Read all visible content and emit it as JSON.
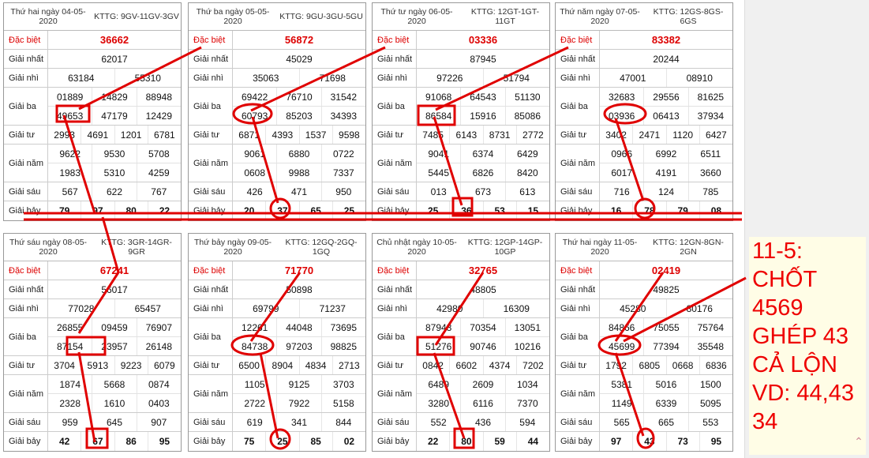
{
  "row_labels": {
    "special": "Đặc biệt",
    "first": "Giải nhất",
    "second": "Giải nhì",
    "third": "Giải ba",
    "fourth": "Giải tư",
    "fifth": "Giải năm",
    "sixth": "Giải sáu",
    "seventh": "Giải bảy"
  },
  "tables": [
    {
      "date": "Thứ hai ngày 04-05-2020",
      "code": "KTTG: 9GV-11GV-3GV",
      "special": "36662",
      "first": "62017",
      "second": [
        "63184",
        "55310"
      ],
      "third": [
        "01889",
        "14829",
        "88948",
        "49653",
        "47179",
        "12429"
      ],
      "fourth": [
        "2993",
        "4691",
        "1201",
        "6781"
      ],
      "fifth": [
        "9622",
        "9530",
        "5708",
        "1983",
        "5310",
        "4259"
      ],
      "sixth": [
        "567",
        "622",
        "767"
      ],
      "seventh": [
        "79",
        "97",
        "80",
        "22"
      ]
    },
    {
      "date": "Thứ ba ngày 05-05-2020",
      "code": "KTTG: 9GU-3GU-5GU",
      "special": "56872",
      "first": "45029",
      "second": [
        "35063",
        "71698"
      ],
      "third": [
        "69422",
        "76710",
        "31542",
        "60793",
        "85203",
        "34393"
      ],
      "fourth": [
        "6871",
        "4393",
        "1537",
        "9598"
      ],
      "fifth": [
        "9061",
        "6880",
        "0722",
        "0608",
        "9988",
        "7337"
      ],
      "sixth": [
        "426",
        "471",
        "950"
      ],
      "seventh": [
        "20",
        "37",
        "65",
        "25"
      ]
    },
    {
      "date": "Thứ tư ngày 06-05-2020",
      "code": "KTTG: 12GT-1GT-11GT",
      "special": "03336",
      "first": "87945",
      "second": [
        "97226",
        "51794"
      ],
      "third": [
        "91068",
        "64543",
        "51130",
        "86584",
        "15916",
        "85086"
      ],
      "fourth": [
        "7485",
        "6143",
        "8731",
        "2772"
      ],
      "fifth": [
        "9041",
        "6374",
        "6429",
        "5445",
        "6826",
        "8420"
      ],
      "sixth": [
        "013",
        "673",
        "613"
      ],
      "seventh": [
        "25",
        "36",
        "53",
        "15"
      ]
    },
    {
      "date": "Thứ năm ngày 07-05-2020",
      "code": "KTTG: 12GS-8GS-6GS",
      "special": "83382",
      "first": "20244",
      "second": [
        "47001",
        "08910"
      ],
      "third": [
        "32683",
        "29556",
        "81625",
        "03936",
        "06413",
        "37934"
      ],
      "fourth": [
        "3402",
        "2471",
        "1120",
        "6427"
      ],
      "fifth": [
        "0966",
        "6992",
        "6511",
        "6017",
        "4191",
        "3660"
      ],
      "sixth": [
        "716",
        "124",
        "785"
      ],
      "seventh": [
        "16",
        "78",
        "79",
        "08"
      ]
    },
    {
      "date": "Thứ sáu ngày 08-05-2020",
      "code": "KTTG: 3GR-14GR-9GR",
      "special": "67241",
      "first": "56017",
      "second": [
        "77028",
        "65457"
      ],
      "third": [
        "26855",
        "09459",
        "76907",
        "87154",
        "23957",
        "26148"
      ],
      "fourth": [
        "3704",
        "5913",
        "9223",
        "6079"
      ],
      "fifth": [
        "1874",
        "5668",
        "0874",
        "2328",
        "1610",
        "0403"
      ],
      "sixth": [
        "959",
        "645",
        "907"
      ],
      "seventh": [
        "42",
        "67",
        "86",
        "95"
      ]
    },
    {
      "date": "Thứ bảy ngày 09-05-2020",
      "code": "KTTG: 12GQ-2GQ-1GQ",
      "special": "71770",
      "first": "50898",
      "second": [
        "69799",
        "71237"
      ],
      "third": [
        "12261",
        "44048",
        "73695",
        "84738",
        "97203",
        "98825"
      ],
      "fourth": [
        "6500",
        "8904",
        "4834",
        "2713"
      ],
      "fifth": [
        "1105",
        "9125",
        "3703",
        "2722",
        "7922",
        "5158"
      ],
      "sixth": [
        "619",
        "341",
        "844"
      ],
      "seventh": [
        "75",
        "25",
        "85",
        "02"
      ]
    },
    {
      "date": "Chủ nhật ngày 10-05-2020",
      "code": "KTTG: 12GP-14GP-10GP",
      "special": "32765",
      "first": "48805",
      "second": [
        "42980",
        "16309"
      ],
      "third": [
        "87948",
        "70354",
        "13051",
        "51276",
        "90746",
        "10216"
      ],
      "fourth": [
        "0842",
        "6602",
        "4374",
        "7202"
      ],
      "fifth": [
        "6489",
        "2609",
        "1034",
        "3280",
        "6116",
        "7370"
      ],
      "sixth": [
        "552",
        "436",
        "594"
      ],
      "seventh": [
        "22",
        "80",
        "59",
        "44"
      ]
    },
    {
      "date": "Thứ hai ngày 11-05-2020",
      "code": "KTTG: 12GN-8GN-2GN",
      "special": "02419",
      "first": "49825",
      "second": [
        "45280",
        "80176"
      ],
      "third": [
        "84866",
        "75055",
        "75764",
        "45699",
        "77394",
        "35548"
      ],
      "fourth": [
        "1792",
        "6805",
        "0668",
        "6836"
      ],
      "fifth": [
        "5381",
        "5016",
        "1500",
        "1149",
        "6339",
        "5095"
      ],
      "sixth": [
        "565",
        "665",
        "553"
      ],
      "seventh": [
        "97",
        "43",
        "73",
        "95"
      ]
    }
  ],
  "note": {
    "lines": [
      "11-5:",
      "CHỐT",
      "4569",
      "GHÉP 43",
      "CẢ LỘN",
      "VD: 44,43",
      "34"
    ]
  },
  "colors": {
    "annotation": "#e00000",
    "special": "#dd0000",
    "note_bg": "#fffde6"
  },
  "icons": {
    "scroll_top": "chevron-up-icon"
  }
}
